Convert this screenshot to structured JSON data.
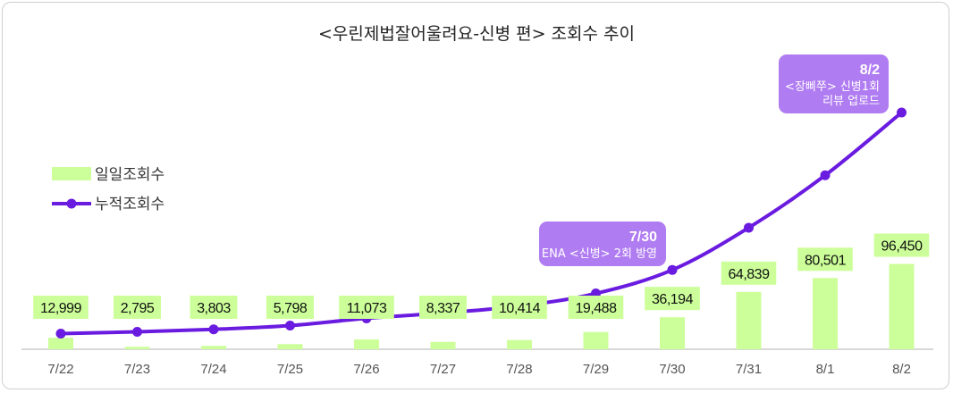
{
  "chart_data": {
    "type": "bar",
    "title": "<우린제법잘어울려요-신병 편> 조회수 추이",
    "categories": [
      "7/22",
      "7/23",
      "7/24",
      "7/25",
      "7/26",
      "7/27",
      "7/28",
      "7/29",
      "7/30",
      "7/31",
      "8/1",
      "8/2"
    ],
    "series": [
      {
        "name": "일일조회수",
        "type": "bar",
        "color": "#ccff99",
        "values": [
          12999,
          2795,
          3803,
          5798,
          11073,
          8337,
          10414,
          19488,
          36194,
          64839,
          80501,
          96450
        ],
        "labels": [
          "12,999",
          "2,795",
          "3,803",
          "5,798",
          "11,073",
          "8,337",
          "10,414",
          "19,488",
          "36,194",
          "64,839",
          "80,501",
          "96,450"
        ]
      },
      {
        "name": "누적조회수",
        "type": "line",
        "color": "#6a1be0",
        "values": [
          12999,
          15794,
          19597,
          25395,
          36468,
          44805,
          55219,
          74707,
          110901,
          175740,
          256241,
          352691
        ]
      }
    ],
    "bar_ylim": [
      0,
      200000
    ],
    "line_ylim": [
      0,
      400000
    ],
    "legend_position": "left",
    "grid": false,
    "annotations": [
      {
        "category": "7/30",
        "date": "7/30",
        "lines": [
          "ENA <신병> 2회 방영"
        ]
      },
      {
        "category": "8/2",
        "date": "8/2",
        "lines": [
          "<장삐쭈> 신병1회",
          "리뷰 업로드"
        ]
      }
    ]
  },
  "colors": {
    "bar": "#ccff99",
    "line": "#6a1be0",
    "annotation_box": "#b07cf2",
    "axis": "#cccccc"
  }
}
